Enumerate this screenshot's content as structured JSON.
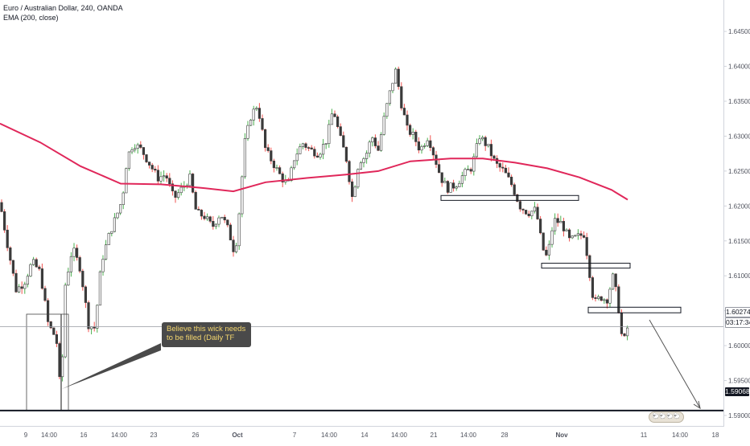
{
  "header": {
    "symbol_line": "Euro / Australian Dollar, 240, OANDA",
    "indicator_line": "EMA (200, close)"
  },
  "callout": {
    "text": "Believe this wick needs to be filled (Daily TF"
  },
  "price_labels": {
    "current_price": "1.60274",
    "countdown": "03:17:34",
    "target_price": "1.59068"
  },
  "logo": {
    "text": "🐑🐑🐑🐑"
  },
  "colors": {
    "ema": "#e0275a",
    "candle_up": "#26a69a",
    "candle_down": "#3a3a3a",
    "wick_up": "#4caf50",
    "wick_down": "#ef5350",
    "zone_border": "#131722",
    "axis_text": "#50535e",
    "callout_bg": "#4a4a4a",
    "callout_text": "#f5d76e"
  },
  "chart_data": {
    "type": "line",
    "title": "Euro / Australian Dollar, 240, OANDA",
    "series": [
      {
        "name": "EMA (200, close)",
        "x": [
          0,
          50,
          100,
          150,
          200,
          250,
          290,
          330,
          380,
          430,
          470,
          510,
          560,
          600,
          640,
          680,
          720,
          760,
          780
        ],
        "values": [
          1.6318,
          1.6291,
          1.6257,
          1.6232,
          1.6231,
          1.6226,
          1.6221,
          1.6234,
          1.624,
          1.6245,
          1.625,
          1.6264,
          1.6268,
          1.6268,
          1.6262,
          1.6254,
          1.6241,
          1.6223,
          1.6209
        ]
      }
    ],
    "price_path": [
      [
        0,
        1.6205
      ],
      [
        10,
        1.614
      ],
      [
        20,
        1.608
      ],
      [
        30,
        1.609
      ],
      [
        40,
        1.612
      ],
      [
        50,
        1.6105
      ],
      [
        60,
        1.603
      ],
      [
        70,
        1.601
      ],
      [
        76,
        1.592
      ],
      [
        80,
        1.608
      ],
      [
        90,
        1.614
      ],
      [
        100,
        1.611
      ],
      [
        110,
        1.603
      ],
      [
        118,
        1.6025
      ],
      [
        126,
        1.612
      ],
      [
        136,
        1.616
      ],
      [
        146,
        1.619
      ],
      [
        152,
        1.621
      ],
      [
        158,
        1.627
      ],
      [
        166,
        1.629
      ],
      [
        176,
        1.628
      ],
      [
        186,
        1.626
      ],
      [
        196,
        1.624
      ],
      [
        206,
        1.6245
      ],
      [
        216,
        1.621
      ],
      [
        226,
        1.6225
      ],
      [
        236,
        1.624
      ],
      [
        244,
        1.619
      ],
      [
        254,
        1.6185
      ],
      [
        264,
        1.617
      ],
      [
        274,
        1.619
      ],
      [
        284,
        1.6165
      ],
      [
        292,
        1.613
      ],
      [
        298,
        1.62
      ],
      [
        304,
        1.629
      ],
      [
        312,
        1.633
      ],
      [
        320,
        1.6345
      ],
      [
        330,
        1.628
      ],
      [
        340,
        1.626
      ],
      [
        350,
        1.624
      ],
      [
        358,
        1.623
      ],
      [
        366,
        1.627
      ],
      [
        376,
        1.629
      ],
      [
        386,
        1.628
      ],
      [
        396,
        1.6275
      ],
      [
        406,
        1.6295
      ],
      [
        414,
        1.634
      ],
      [
        422,
        1.63
      ],
      [
        430,
        1.627
      ],
      [
        438,
        1.621
      ],
      [
        446,
        1.6265
      ],
      [
        454,
        1.627
      ],
      [
        462,
        1.63
      ],
      [
        470,
        1.628
      ],
      [
        478,
        1.633
      ],
      [
        486,
        1.637
      ],
      [
        492,
        1.6395
      ],
      [
        498,
        1.635
      ],
      [
        506,
        1.631
      ],
      [
        514,
        1.63
      ],
      [
        522,
        1.628
      ],
      [
        532,
        1.63
      ],
      [
        540,
        1.627
      ],
      [
        548,
        1.624
      ],
      [
        556,
        1.6225
      ],
      [
        566,
        1.623
      ],
      [
        576,
        1.6245
      ],
      [
        586,
        1.6255
      ],
      [
        596,
        1.63
      ],
      [
        606,
        1.6285
      ],
      [
        616,
        1.626
      ],
      [
        626,
        1.625
      ],
      [
        636,
        1.623
      ],
      [
        646,
        1.62
      ],
      [
        656,
        1.619
      ],
      [
        666,
        1.6195
      ],
      [
        674,
        1.614
      ],
      [
        680,
        1.6125
      ],
      [
        688,
        1.618
      ],
      [
        698,
        1.6175
      ],
      [
        708,
        1.615
      ],
      [
        716,
        1.6155
      ],
      [
        726,
        1.616
      ],
      [
        732,
        1.611
      ],
      [
        738,
        1.606
      ],
      [
        746,
        1.607
      ],
      [
        754,
        1.6065
      ],
      [
        762,
        1.61
      ],
      [
        768,
        1.606
      ],
      [
        774,
        1.6
      ],
      [
        780,
        1.6027
      ]
    ],
    "yaxis_ticks": [
      "1.64500",
      "1.64000",
      "1.63500",
      "1.63000",
      "1.62500",
      "1.62000",
      "1.61500",
      "1.61000",
      "1.60500",
      "1.60000",
      "1.59500",
      "1.59000"
    ],
    "xaxis_ticks": [
      "9",
      "14:00",
      "16",
      "14:00",
      "23",
      "26",
      "Oct",
      "7",
      "14:00",
      "14",
      "14:00",
      "21",
      "14:00",
      "28",
      "Nov",
      "11",
      "14:00",
      "18"
    ],
    "ylim": [
      1.5885,
      1.6495
    ],
    "grid": false,
    "annotations": {
      "wick_box": {
        "price_top": 1.6045,
        "price_bottom": 1.5907
      },
      "zones": [
        {
          "price_top": 1.6215,
          "price_bottom": 1.6208
        },
        {
          "price_top": 1.6118,
          "price_bottom": 1.6111
        },
        {
          "price_top": 1.6055,
          "price_bottom": 1.6047
        }
      ],
      "horizontal_lines": [
        {
          "price": 1.6027,
          "label": "1.60274"
        },
        {
          "price": 1.5907,
          "label": "1.59068"
        }
      ],
      "projection_arrow": {
        "from_price": 1.6045,
        "to_price": 1.5908
      }
    }
  }
}
